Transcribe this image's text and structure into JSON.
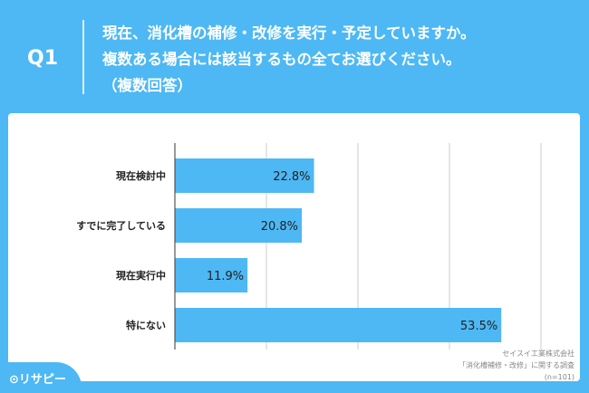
{
  "header": {
    "q": "Q1",
    "title_lines": [
      "現在、消化槽の補修・改修を実行・予定していますか。",
      "複数ある場合には該当するもの全てお選びください。",
      "（複数回答）"
    ]
  },
  "chart_data": {
    "type": "bar",
    "orientation": "horizontal",
    "categories": [
      "現在検討中",
      "すでに完了している",
      "現在実行中",
      "特にない"
    ],
    "values": [
      22.8,
      20.8,
      11.9,
      53.5
    ],
    "labels": [
      "22.8%",
      "20.8%",
      "11.9%",
      "53.5%"
    ],
    "xlim": [
      0,
      60
    ],
    "gridlines": [
      0,
      15,
      30,
      45,
      60
    ],
    "bar_color": "#4db8f4"
  },
  "source": {
    "line1": "セイスイ工業株式会社",
    "line2": "「消化槽補修・改修」に関する調査",
    "line3": "(n=101)"
  },
  "logo": {
    "text": "リサピー"
  }
}
